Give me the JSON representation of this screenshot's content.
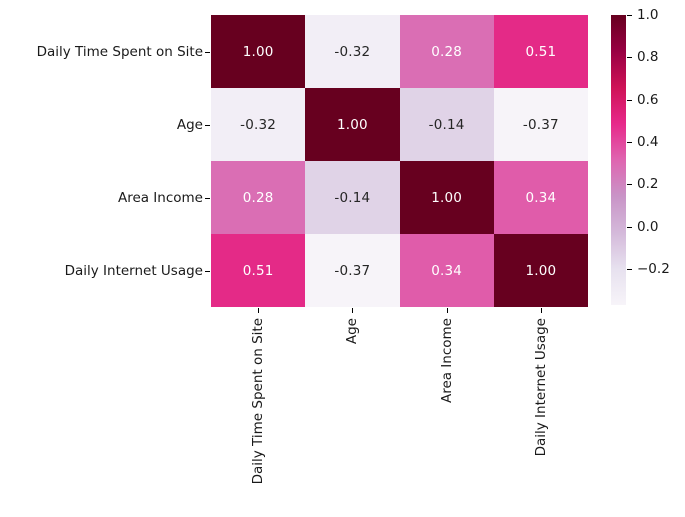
{
  "figure": {
    "background_color": "#ffffff",
    "text_color": "#1a1a1a"
  },
  "chart_data": {
    "type": "heatmap",
    "title": "",
    "description": "Correlation matrix heatmap",
    "categories": [
      "Daily Time Spent on Site",
      "Age",
      "Area Income",
      "Daily Internet Usage"
    ],
    "x_tick_labels": [
      "Daily Time Spent on Site",
      "Age",
      "Area Income",
      "Daily Internet Usage"
    ],
    "y_tick_labels": [
      "Daily Time Spent on Site",
      "Age",
      "Area Income",
      "Daily Internet Usage"
    ],
    "matrix": [
      [
        1.0,
        -0.32,
        0.28,
        0.51
      ],
      [
        -0.32,
        1.0,
        -0.14,
        -0.37
      ],
      [
        0.28,
        -0.14,
        1.0,
        0.34
      ],
      [
        0.51,
        -0.37,
        0.34,
        1.0
      ]
    ],
    "cell_labels": [
      [
        "1.00",
        "-0.32",
        "0.28",
        "0.51"
      ],
      [
        "-0.32",
        "1.00",
        "-0.14",
        "-0.37"
      ],
      [
        "0.28",
        "-0.14",
        "1.00",
        "0.34"
      ],
      [
        "0.51",
        "-0.37",
        "0.34",
        "1.00"
      ]
    ],
    "cell_colors": [
      [
        "#67001f",
        "#f2eef6",
        "#da6eb4",
        "#e42a87"
      ],
      [
        "#f2eef6",
        "#67001f",
        "#e0d3e7",
        "#f7f4f9"
      ],
      [
        "#da6eb4",
        "#e0d3e7",
        "#67001f",
        "#e05caa"
      ],
      [
        "#e42a87",
        "#f7f4f9",
        "#e05caa",
        "#67001f"
      ]
    ],
    "cell_text_colors": [
      [
        "#ffffff",
        "#262626",
        "#ffffff",
        "#ffffff"
      ],
      [
        "#262626",
        "#ffffff",
        "#262626",
        "#262626"
      ],
      [
        "#ffffff",
        "#262626",
        "#ffffff",
        "#ffffff"
      ],
      [
        "#ffffff",
        "#262626",
        "#ffffff",
        "#ffffff"
      ]
    ],
    "vmin": -0.37,
    "vmax": 1.0,
    "colormap": "PuRd",
    "colormap_stops_top_to_bottom": [
      "#67001f",
      "#980043",
      "#ce1256",
      "#e7298a",
      "#df65b0",
      "#c994c7",
      "#d4b9da",
      "#e7e1ef",
      "#f7f4f9"
    ],
    "colorbar": {
      "tick_labels": [
        "1.0",
        "0.8",
        "0.6",
        "0.4",
        "0.2",
        "0.0",
        "−0.2"
      ],
      "tick_values": [
        1.0,
        0.8,
        0.6,
        0.4,
        0.2,
        0.0,
        -0.2
      ]
    },
    "grid": false,
    "legend_position": "right-colorbar"
  }
}
